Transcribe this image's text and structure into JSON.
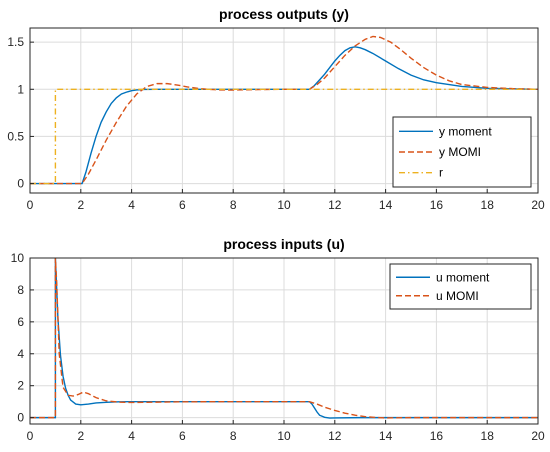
{
  "chart_data": [
    {
      "type": "line",
      "title": "process outputs (y)",
      "xlim": [
        0,
        20
      ],
      "ylim": [
        -0.1,
        1.65
      ],
      "xticks": [
        0,
        2,
        4,
        6,
        8,
        10,
        12,
        14,
        16,
        18,
        20
      ],
      "yticks": [
        0,
        0.5,
        1,
        1.5
      ],
      "ytick_labels": [
        "0",
        "0.5",
        "1",
        "1.5"
      ],
      "grid": true,
      "legend_position": "lower-right",
      "series": [
        {
          "name": "y moment",
          "color": "#0072BD",
          "style": "solid",
          "x": [
            0,
            2.05,
            2.2,
            2.4,
            2.6,
            2.8,
            3.0,
            3.2,
            3.4,
            3.6,
            3.8,
            4.0,
            4.2,
            4.5,
            5.0,
            6.0,
            8.0,
            10.0,
            11.0,
            11.2,
            11.4,
            11.6,
            11.8,
            12.0,
            12.2,
            12.4,
            12.6,
            12.8,
            13.0,
            13.2,
            13.5,
            14.0,
            14.5,
            15.0,
            15.5,
            16.0,
            17.0,
            18.0,
            19.0,
            20.0
          ],
          "y": [
            0,
            0,
            0.12,
            0.32,
            0.5,
            0.65,
            0.76,
            0.85,
            0.91,
            0.95,
            0.97,
            0.985,
            0.993,
            0.998,
            1.0,
            1.0,
            1.0,
            1.0,
            1.0,
            1.04,
            1.1,
            1.16,
            1.23,
            1.3,
            1.36,
            1.41,
            1.44,
            1.45,
            1.44,
            1.42,
            1.38,
            1.3,
            1.22,
            1.15,
            1.1,
            1.07,
            1.03,
            1.01,
            1.005,
            1.0
          ]
        },
        {
          "name": "y MOMI",
          "color": "#D95319",
          "style": "dashed",
          "x": [
            0,
            2.05,
            2.3,
            2.6,
            3.0,
            3.4,
            3.8,
            4.2,
            4.6,
            5.0,
            5.4,
            5.8,
            6.2,
            6.6,
            7.0,
            7.5,
            8.0,
            9.0,
            10.0,
            11.0,
            11.3,
            11.6,
            12.0,
            12.4,
            12.8,
            13.2,
            13.5,
            13.8,
            14.2,
            14.6,
            15.0,
            15.5,
            16.0,
            16.5,
            17.0,
            18.0,
            19.0,
            20.0
          ],
          "y": [
            0,
            0,
            0.1,
            0.25,
            0.46,
            0.65,
            0.82,
            0.95,
            1.03,
            1.06,
            1.06,
            1.045,
            1.025,
            1.01,
            1.0,
            0.993,
            0.992,
            0.997,
            1.0,
            1.0,
            1.05,
            1.12,
            1.24,
            1.36,
            1.46,
            1.53,
            1.56,
            1.55,
            1.5,
            1.42,
            1.33,
            1.23,
            1.15,
            1.09,
            1.05,
            1.02,
            1.007,
            1.0
          ]
        },
        {
          "name": "r",
          "color": "#EDB120",
          "style": "dashdot",
          "x": [
            0,
            1.0,
            1.0,
            20.0
          ],
          "y": [
            0,
            0,
            1,
            1
          ]
        }
      ]
    },
    {
      "type": "line",
      "title": "process inputs (u)",
      "xlim": [
        0,
        20
      ],
      "ylim": [
        -0.4,
        10
      ],
      "xticks": [
        0,
        2,
        4,
        6,
        8,
        10,
        12,
        14,
        16,
        18,
        20
      ],
      "yticks": [
        0,
        2,
        4,
        6,
        8,
        10
      ],
      "ytick_labels": [
        "0",
        "2",
        "4",
        "6",
        "8",
        "10"
      ],
      "grid": true,
      "legend_position": "top-right",
      "series": [
        {
          "name": "u moment",
          "color": "#0072BD",
          "style": "solid",
          "x": [
            0,
            1.0,
            1.0,
            1.1,
            1.2,
            1.3,
            1.4,
            1.5,
            1.6,
            1.8,
            2.0,
            2.3,
            2.6,
            3.0,
            3.5,
            4.0,
            6.0,
            8.0,
            10.0,
            11.0,
            11.1,
            11.2,
            11.3,
            11.4,
            11.6,
            11.8,
            12.0,
            13.0,
            14.0,
            16.0,
            20.0
          ],
          "y": [
            0,
            0,
            10,
            6.2,
            3.9,
            2.6,
            1.85,
            1.4,
            1.1,
            0.85,
            0.8,
            0.85,
            0.92,
            0.96,
            0.99,
            1.0,
            1.0,
            1.0,
            1.0,
            1.0,
            0.85,
            0.6,
            0.35,
            0.15,
            0.02,
            -0.03,
            -0.02,
            0.0,
            0.0,
            0.0,
            0.0
          ]
        },
        {
          "name": "u MOMI",
          "color": "#D95319",
          "style": "dashed",
          "x": [
            0,
            1.0,
            1.0,
            1.05,
            1.15,
            1.3,
            1.5,
            1.7,
            1.9,
            2.1,
            2.3,
            2.6,
            3.0,
            3.5,
            4.0,
            5.0,
            6.0,
            8.0,
            10.0,
            11.0,
            11.3,
            11.6,
            12.0,
            12.4,
            12.8,
            13.2,
            13.6,
            14.0,
            15.0,
            16.0,
            20.0
          ],
          "y": [
            0,
            0,
            10,
            8.5,
            4.0,
            1.9,
            1.4,
            1.35,
            1.45,
            1.6,
            1.5,
            1.25,
            1.05,
            0.97,
            0.95,
            0.97,
            0.99,
            1.0,
            1.0,
            1.0,
            0.85,
            0.65,
            0.45,
            0.28,
            0.15,
            0.06,
            0.01,
            -0.02,
            0.0,
            0.0,
            0.0
          ]
        }
      ]
    }
  ]
}
